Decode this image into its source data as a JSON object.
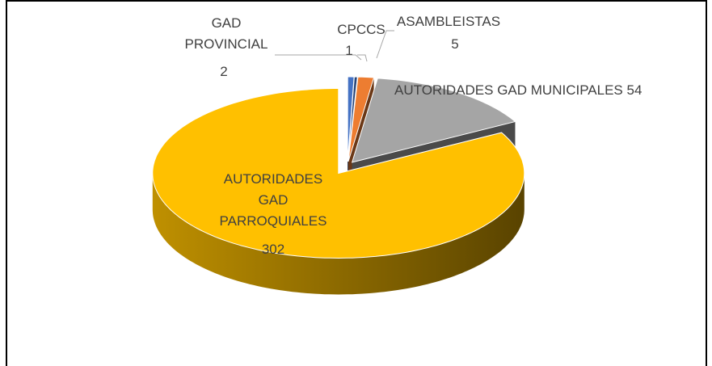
{
  "chart_data": {
    "type": "pie3d",
    "categories": [
      "GAD PROVINCIAL",
      "CPCCS",
      "ASAMBLEISTAS",
      "AUTORIDADES GAD MUNICIPALES",
      "AUTORIDADES GAD PARROQUIALES"
    ],
    "values": [
      2,
      1,
      5,
      54,
      302
    ],
    "colors": [
      "#4472c4",
      "#264478",
      "#ed7d31",
      "#a5a5a5",
      "#ffc000"
    ]
  }
}
